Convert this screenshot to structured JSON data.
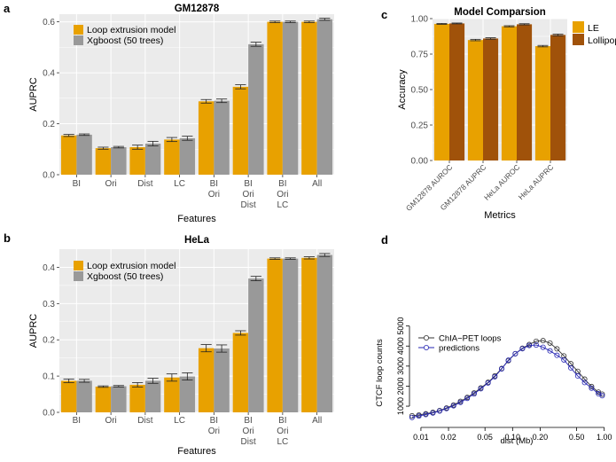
{
  "colors": {
    "loop": "#E8A100",
    "xgb": "#999999",
    "le": "#E8A100",
    "lollipop": "#A0520A",
    "panel_bg": "#EBEBEB",
    "grid": "#ffffff",
    "line_color": "#333333",
    "pred_color": "#2626B3"
  },
  "chart_data": [
    {
      "panel": "a",
      "type": "bar",
      "title": "GM12878",
      "xlabel": "Features",
      "ylabel": "AUPRC",
      "ylim": [
        0,
        0.63
      ],
      "yticks": [
        0.0,
        0.2,
        0.4,
        0.6
      ],
      "ytick_labels": [
        "0.0",
        "0.2",
        "0.4",
        "0.6"
      ],
      "categories": [
        [
          "BI"
        ],
        [
          "Ori"
        ],
        [
          "Dist"
        ],
        [
          "LC"
        ],
        [
          "BI",
          "Ori"
        ],
        [
          "BI",
          "Ori",
          "Dist"
        ],
        [
          "BI",
          "Ori",
          "LC"
        ],
        [
          "All"
        ]
      ],
      "series": [
        {
          "name": "Loop extrusion model",
          "color_key": "loop",
          "values": [
            0.154,
            0.104,
            0.108,
            0.138,
            0.288,
            0.345,
            0.6,
            0.6
          ],
          "errors": [
            0.004,
            0.004,
            0.008,
            0.008,
            0.007,
            0.008,
            0.003,
            0.003
          ]
        },
        {
          "name": "Xgboost (50 trees)",
          "color_key": "xgb",
          "values": [
            0.157,
            0.108,
            0.122,
            0.143,
            0.29,
            0.512,
            0.6,
            0.61
          ],
          "errors": [
            0.003,
            0.003,
            0.009,
            0.008,
            0.007,
            0.008,
            0.003,
            0.004
          ]
        }
      ],
      "legend": "top-left"
    },
    {
      "panel": "b",
      "type": "bar",
      "title": "HeLa",
      "xlabel": "Features",
      "ylabel": "AUPRC",
      "ylim": [
        0,
        0.45
      ],
      "yticks": [
        0.0,
        0.1,
        0.2,
        0.3,
        0.4
      ],
      "ytick_labels": [
        "0.0",
        "0.1",
        "0.2",
        "0.3",
        "0.4"
      ],
      "categories": [
        [
          "BI"
        ],
        [
          "Ori"
        ],
        [
          "Dist"
        ],
        [
          "LC"
        ],
        [
          "BI",
          "Ori"
        ],
        [
          "BI",
          "Ori",
          "Dist"
        ],
        [
          "BI",
          "Ori",
          "LC"
        ],
        [
          "All"
        ]
      ],
      "series": [
        {
          "name": "Loop extrusion model",
          "color_key": "loop",
          "values": [
            0.087,
            0.071,
            0.076,
            0.096,
            0.177,
            0.219,
            0.424,
            0.426
          ],
          "errors": [
            0.005,
            0.002,
            0.006,
            0.01,
            0.01,
            0.006,
            0.002,
            0.003
          ]
        },
        {
          "name": "Xgboost (50 trees)",
          "color_key": "xgb",
          "values": [
            0.087,
            0.072,
            0.087,
            0.099,
            0.176,
            0.369,
            0.424,
            0.434
          ],
          "errors": [
            0.004,
            0.002,
            0.007,
            0.01,
            0.01,
            0.006,
            0.002,
            0.004
          ]
        }
      ],
      "legend": "top-left"
    },
    {
      "panel": "c",
      "type": "bar",
      "title": "Model Comparsion",
      "xlabel": "Metrics",
      "ylabel": "Accuracy",
      "ylim": [
        0,
        1.0
      ],
      "yticks": [
        0.0,
        0.25,
        0.5,
        0.75,
        1.0
      ],
      "ytick_labels": [
        "0.00",
        "0.25",
        "0.50",
        "0.75",
        "1.00"
      ],
      "categories": [
        [
          "GM12878 AUROC"
        ],
        [
          "GM12878 AUPRC"
        ],
        [
          "HeLa AUROC"
        ],
        [
          "HeLa AUPRC"
        ]
      ],
      "series": [
        {
          "name": "LE",
          "color_key": "le",
          "values": [
            0.963,
            0.849,
            0.946,
            0.806
          ],
          "errors": [
            0.003,
            0.005,
            0.004,
            0.005
          ]
        },
        {
          "name": "Lollipop",
          "color_key": "lollipop",
          "values": [
            0.966,
            0.86,
            0.96,
            0.885
          ],
          "errors": [
            0.003,
            0.005,
            0.004,
            0.006
          ]
        }
      ],
      "legend": "right"
    },
    {
      "panel": "d",
      "type": "scatter",
      "xlabel": "dist (Mb)",
      "ylabel": "CTCF loop counts",
      "xscale": "log",
      "xlim": [
        0.0075,
        1.15
      ],
      "ylim": [
        250,
        5250
      ],
      "xticks": [
        0.01,
        0.02,
        0.05,
        0.1,
        0.2,
        0.5,
        1.0
      ],
      "xtick_labels": [
        "0.01",
        "0.02",
        "0.05",
        "0.10",
        "0.20",
        "0.50",
        "1.00"
      ],
      "yticks": [
        1000,
        2000,
        3000,
        4000,
        5000
      ],
      "ytick_labels": [
        "1000",
        "2000",
        "3000",
        "4000",
        "5000"
      ],
      "legend": "top-left",
      "series": [
        {
          "name": "ChIA−PET loops",
          "color_key": "line_color",
          "x": [
            0.008,
            0.0095,
            0.0113,
            0.0135,
            0.016,
            0.019,
            0.0227,
            0.027,
            0.032,
            0.038,
            0.045,
            0.054,
            0.064,
            0.076,
            0.09,
            0.107,
            0.128,
            0.152,
            0.181,
            0.215,
            0.256,
            0.305,
            0.363,
            0.432,
            0.514,
            0.611,
            0.727,
            0.865,
            0.95
          ],
          "y": [
            520,
            560,
            620,
            690,
            780,
            910,
            1060,
            1240,
            1440,
            1660,
            1910,
            2190,
            2510,
            2880,
            3270,
            3620,
            3890,
            4080,
            4240,
            4270,
            4150,
            3860,
            3510,
            3120,
            2740,
            2350,
            1980,
            1700,
            1600
          ]
        },
        {
          "name": "predictions",
          "color_key": "pred_color",
          "x": [
            0.008,
            0.0095,
            0.0113,
            0.0135,
            0.016,
            0.019,
            0.0227,
            0.027,
            0.032,
            0.038,
            0.045,
            0.054,
            0.064,
            0.076,
            0.09,
            0.107,
            0.128,
            0.152,
            0.181,
            0.215,
            0.256,
            0.305,
            0.363,
            0.432,
            0.514,
            0.611,
            0.727,
            0.865,
            0.95
          ],
          "y": [
            440,
            510,
            580,
            660,
            760,
            880,
            1020,
            1190,
            1390,
            1610,
            1870,
            2160,
            2470,
            2860,
            3300,
            3620,
            3870,
            4030,
            4050,
            3940,
            3760,
            3540,
            3310,
            2910,
            2510,
            2180,
            1900,
            1620,
            1520
          ]
        }
      ]
    }
  ]
}
